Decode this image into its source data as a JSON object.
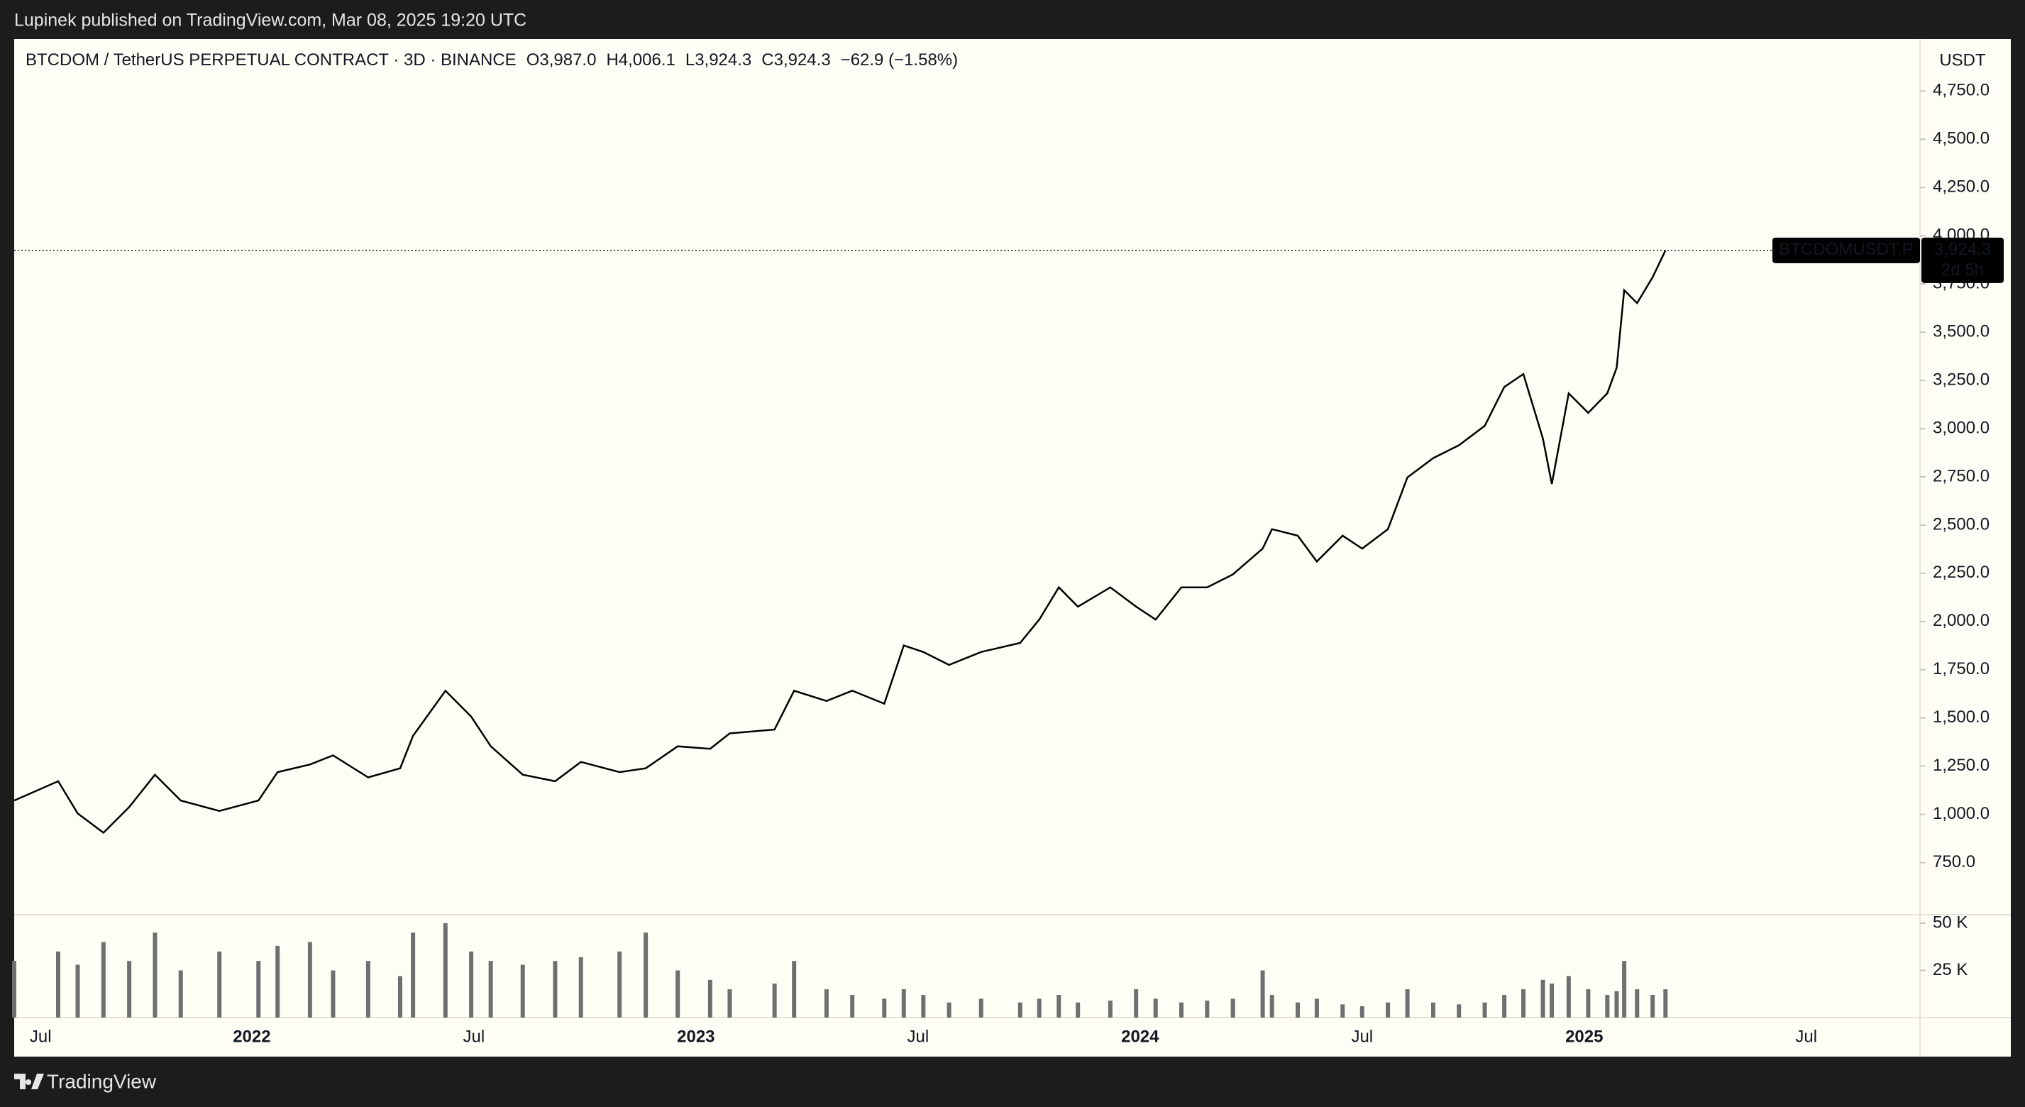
{
  "header": {
    "published": "Lupinek published on TradingView.com, Mar 08, 2025 19:20 UTC"
  },
  "footer": {
    "brand": "TradingView"
  },
  "chart_data": [
    {
      "type": "line",
      "title": "BTCDOM / TetherUS PERPETUAL CONTRACT · 3D · BINANCE",
      "ohlc": [
        "O3,987.0",
        "H4,006.1",
        "L3,924.3",
        "C3,924.3"
      ],
      "change": "−62.9 (−1.58%)",
      "currency": "USDT",
      "symbol_label": "BTCDOMUSDT.P",
      "last_price": {
        "value": 3924.3,
        "label": "3,924.3"
      },
      "countdown": "2d 5h",
      "color": "#000000",
      "x": [
        2021.465,
        2021.564,
        2021.608,
        2021.666,
        2021.724,
        2021.782,
        2021.84,
        2021.927,
        2022.015,
        2022.058,
        2022.131,
        2022.183,
        2022.262,
        2022.334,
        2022.363,
        2022.436,
        2022.494,
        2022.538,
        2022.61,
        2022.683,
        2022.741,
        2022.828,
        2022.887,
        2022.959,
        2023.032,
        2023.076,
        2023.177,
        2023.221,
        2023.294,
        2023.352,
        2023.424,
        2023.468,
        2023.512,
        2023.57,
        2023.642,
        2023.73,
        2023.773,
        2023.817,
        2023.86,
        2023.933,
        2023.991,
        2024.035,
        2024.093,
        2024.151,
        2024.209,
        2024.276,
        2024.297,
        2024.355,
        2024.398,
        2024.456,
        2024.5,
        2024.558,
        2024.602,
        2024.66,
        2024.718,
        2024.776,
        2024.82,
        2024.863,
        2024.907,
        2024.927,
        2024.965,
        2025.009,
        2025.052,
        2025.073,
        2025.09,
        2025.119,
        2025.154,
        2025.183
      ],
      "values": [
        1072,
        1172,
        1005,
        905,
        1038,
        1206,
        1072,
        1018,
        1072,
        1219,
        1259,
        1306,
        1192,
        1239,
        1407,
        1641,
        1507,
        1353,
        1206,
        1172,
        1272,
        1219,
        1239,
        1353,
        1340,
        1420,
        1440,
        1641,
        1588,
        1641,
        1574,
        1876,
        1842,
        1775,
        1842,
        1889,
        2010,
        2177,
        2077,
        2177,
        2077,
        2010,
        2177,
        2177,
        2244,
        2378,
        2479,
        2445,
        2311,
        2445,
        2378,
        2479,
        2747,
        2847,
        2914,
        3015,
        3216,
        3283,
        2948,
        2713,
        3183,
        3082,
        3183,
        3316,
        3718,
        3651,
        3785,
        3924.3
      ],
      "xlim": [
        2021.465,
        2025.756
      ],
      "xticks": [
        {
          "value": 2021.5,
          "label": "Jul"
        },
        {
          "value": 2022,
          "label": "2022"
        },
        {
          "value": 2022.5,
          "label": "Jul"
        },
        {
          "value": 2023,
          "label": "2023"
        },
        {
          "value": 2023.5,
          "label": "Jul"
        },
        {
          "value": 2024,
          "label": "2024"
        },
        {
          "value": 2024.5,
          "label": "Jul"
        },
        {
          "value": 2025,
          "label": "2025"
        },
        {
          "value": 2025.5,
          "label": "Jul"
        }
      ],
      "ylim": [
        480,
        5020
      ],
      "yticks": [
        {
          "value": 750,
          "label": "750.0"
        },
        {
          "value": 1000,
          "label": "1,000.0"
        },
        {
          "value": 1250,
          "label": "1,250.0"
        },
        {
          "value": 1500,
          "label": "1,500.0"
        },
        {
          "value": 1750,
          "label": "1,750.0"
        },
        {
          "value": 2000,
          "label": "2,000.0"
        },
        {
          "value": 2250,
          "label": "2,250.0"
        },
        {
          "value": 2500,
          "label": "2,500.0"
        },
        {
          "value": 2750,
          "label": "2,750.0"
        },
        {
          "value": 3000,
          "label": "3,000.0"
        },
        {
          "value": 3250,
          "label": "3,250.0"
        },
        {
          "value": 3500,
          "label": "3,500.0"
        },
        {
          "value": 3750,
          "label": "3,750.0"
        },
        {
          "value": 4000,
          "label": "4,000.0"
        },
        {
          "value": 4250,
          "label": "4,250.0"
        },
        {
          "value": 4500,
          "label": "4,500.0"
        },
        {
          "value": 4750,
          "label": "4,750.0"
        }
      ]
    },
    {
      "type": "bar",
      "color": "#6f6f6f",
      "x": [
        2021.465,
        2021.564,
        2021.608,
        2021.666,
        2021.724,
        2021.782,
        2021.84,
        2021.927,
        2022.015,
        2022.058,
        2022.131,
        2022.183,
        2022.262,
        2022.334,
        2022.363,
        2022.436,
        2022.494,
        2022.538,
        2022.61,
        2022.683,
        2022.741,
        2022.828,
        2022.887,
        2022.959,
        2023.032,
        2023.076,
        2023.177,
        2023.221,
        2023.294,
        2023.352,
        2023.424,
        2023.468,
        2023.512,
        2023.57,
        2023.642,
        2023.73,
        2023.773,
        2023.817,
        2023.86,
        2023.933,
        2023.991,
        2024.035,
        2024.093,
        2024.151,
        2024.209,
        2024.276,
        2024.297,
        2024.355,
        2024.398,
        2024.456,
        2024.5,
        2024.558,
        2024.602,
        2024.66,
        2024.718,
        2024.776,
        2024.82,
        2024.863,
        2024.907,
        2024.927,
        2024.965,
        2025.009,
        2025.052,
        2025.073,
        2025.09,
        2025.119,
        2025.154,
        2025.183
      ],
      "values": [
        30000,
        35000,
        28000,
        40000,
        30000,
        45000,
        25000,
        35000,
        30000,
        38000,
        40000,
        25000,
        30000,
        22000,
        45000,
        50000,
        35000,
        30000,
        28000,
        30000,
        32000,
        35000,
        45000,
        25000,
        20000,
        15000,
        18000,
        30000,
        15000,
        12000,
        10000,
        15000,
        12000,
        8000,
        10000,
        8000,
        10000,
        12000,
        8000,
        9000,
        15000,
        10000,
        8000,
        9000,
        10000,
        25000,
        12000,
        8000,
        10000,
        7000,
        6000,
        8000,
        15000,
        8000,
        7000,
        8000,
        12000,
        15000,
        20000,
        18000,
        22000,
        15000,
        12000,
        14000,
        30000,
        15000,
        12000,
        15000
      ],
      "xlim": [
        2021.465,
        2025.756
      ],
      "ylim": [
        0,
        54500
      ],
      "yticks": [
        {
          "value": 25000,
          "label": "25 K"
        },
        {
          "value": 50000,
          "label": "50 K"
        }
      ]
    }
  ]
}
